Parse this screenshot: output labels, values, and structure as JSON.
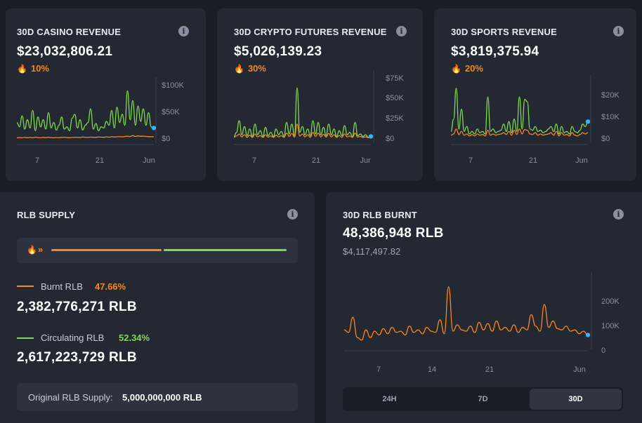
{
  "casino": {
    "title": "30D CASINO REVENUE",
    "value": "$23,032,806.21",
    "growth": "10%",
    "chart_data": {
      "type": "line",
      "yticks": [
        "$100K",
        "$50K",
        "$0"
      ],
      "xticks": [
        "7",
        "21",
        "Jun"
      ],
      "ymax": 100000,
      "series": [
        {
          "color": "#7fd94a",
          "values": [
            30000,
            22000,
            42000,
            18000,
            35000,
            20000,
            52000,
            15000,
            40000,
            22000,
            35000,
            18000,
            48000,
            20000,
            30000,
            16000,
            25000,
            40000,
            18000,
            22000,
            15000,
            38000,
            45000,
            20000,
            35000,
            16000,
            25000,
            30000,
            55000,
            18000,
            28000,
            15000,
            22000,
            20000,
            32000,
            25000,
            52000,
            20000,
            58000,
            30000,
            45000,
            25000,
            88000,
            35000,
            70000,
            25000,
            60000,
            32000,
            55000,
            25000,
            48000,
            22000,
            20000
          ]
        },
        {
          "color": "#f7881c",
          "values": [
            2000,
            2500,
            2000,
            3000,
            2200,
            2800,
            2000,
            3200,
            2500,
            2000,
            2800,
            2200,
            3000,
            2500,
            2000,
            2600,
            2200,
            2800,
            3000,
            2400,
            2200,
            2600,
            3000,
            2800,
            2500,
            3500,
            3000,
            2800,
            3200,
            3000,
            2800,
            3500,
            3200,
            3000,
            3800,
            3200,
            4000,
            3500,
            3800,
            4200,
            3800,
            4500,
            5000,
            4200,
            6000,
            4500,
            5500,
            4800,
            5000,
            4500,
            4200,
            4000,
            3800
          ]
        }
      ]
    }
  },
  "crypto": {
    "title": "30D CRYPTO FUTURES REVENUE",
    "value": "$5,026,139.23",
    "growth": "30%",
    "chart_data": {
      "type": "line",
      "yticks": [
        "$75K",
        "$50K",
        "$25K",
        "$0"
      ],
      "xticks": [
        "7",
        "21",
        "Jur"
      ],
      "ymax": 75000,
      "series": [
        {
          "color": "#7fd94a",
          "values": [
            3000,
            8000,
            22000,
            5000,
            15000,
            4000,
            12000,
            3000,
            18000,
            5000,
            10000,
            3000,
            14000,
            4000,
            8000,
            3000,
            12000,
            5000,
            9000,
            3000,
            20000,
            6000,
            18000,
            4000,
            62000,
            8000,
            15000,
            5000,
            12000,
            4000,
            22000,
            6000,
            20000,
            5000,
            14000,
            4000,
            18000,
            5000,
            12000,
            3000,
            10000,
            4000,
            16000,
            5000,
            8000,
            3000,
            20000,
            4000,
            6000,
            3000,
            5000,
            2000,
            3000
          ]
        },
        {
          "color": "#f7881c",
          "values": [
            2000,
            3500,
            6000,
            2500,
            5000,
            2000,
            4500,
            1800,
            6000,
            2500,
            4000,
            1800,
            5000,
            2200,
            3500,
            1800,
            4500,
            2500,
            3800,
            1800,
            7000,
            3000,
            6500,
            2200,
            18000,
            3500,
            6000,
            2500,
            5000,
            2000,
            8000,
            3000,
            7000,
            2500,
            5500,
            2200,
            6500,
            2500,
            5000,
            1800,
            4000,
            2000,
            6000,
            2500,
            3500,
            1800,
            7000,
            2200,
            3000,
            1800,
            2500,
            1500,
            2000
          ]
        }
      ]
    }
  },
  "sports": {
    "title": "30D SPORTS REVENUE",
    "value": "$3,819,375.94",
    "growth": "20%",
    "chart_data": {
      "type": "line",
      "yticks": [
        "$20K",
        "$10K",
        "$0"
      ],
      "xticks": [
        "7",
        "21",
        "Jun"
      ],
      "ymax": 23000,
      "series": [
        {
          "color": "#7fd94a",
          "values": [
            3000,
            8000,
            20500,
            4000,
            12000,
            3000,
            5000,
            2000,
            3000,
            2000,
            4000,
            2500,
            3000,
            2000,
            17000,
            3000,
            4000,
            2500,
            3000,
            3500,
            6000,
            3000,
            7000,
            2500,
            8000,
            3000,
            17000,
            4000,
            16000,
            15000,
            4000,
            3500,
            5000,
            3000,
            3500,
            2500,
            3000,
            4000,
            5000,
            3000,
            6000,
            2000,
            5000,
            2500,
            3000,
            2000,
            5000,
            3000,
            2500,
            3500,
            6000,
            5000,
            7000
          ]
        },
        {
          "color": "#f7881c",
          "values": [
            1500,
            2000,
            4000,
            1800,
            3000,
            1500,
            2000,
            1200,
            1800,
            1200,
            2000,
            1500,
            1800,
            1200,
            3500,
            1500,
            2000,
            1500,
            1800,
            2000,
            2500,
            1800,
            3000,
            1500,
            3500,
            1800,
            4000,
            2000,
            3800,
            3500,
            2000,
            1800,
            2500,
            1500,
            2000,
            1500,
            1800,
            2000,
            2500,
            1500,
            3000,
            1200,
            2500,
            1500,
            1800,
            1200,
            2500,
            1500,
            1200,
            1800,
            2500,
            2000,
            2500
          ]
        }
      ]
    }
  },
  "supply": {
    "title": "RLB SUPPLY",
    "burnt_label": "Burnt RLB",
    "burnt_pct": "47.66%",
    "burnt_fraction": 0.4766,
    "burnt_value": "2,382,776,271 RLB",
    "circ_label": "Circulating RLB",
    "circ_pct": "52.34%",
    "circ_value": "2,617,223,729 RLB",
    "original_label": "Original RLB Supply:",
    "original_value": "5,000,000,000 RLB",
    "colors": {
      "burnt": "#f7881c",
      "circulating": "#7fd94a"
    }
  },
  "burnt": {
    "title": "30D RLB BURNT",
    "value": "48,386,948 RLB",
    "usd": "$4,117,497.82",
    "tabs": [
      "24H",
      "7D",
      "30D"
    ],
    "active_tab": "30D",
    "chart_data": {
      "type": "line",
      "yticks": [
        "200K",
        "100K",
        "0"
      ],
      "xticks": [
        "7",
        "14",
        "21",
        "Jun"
      ],
      "ymax": 260000,
      "series": [
        {
          "color": "#f7881c",
          "values": [
            60000,
            50000,
            110000,
            30000,
            20000,
            60000,
            30000,
            55000,
            40000,
            65000,
            45000,
            70000,
            50000,
            55000,
            40000,
            75000,
            50000,
            60000,
            45000,
            70000,
            55000,
            50000,
            100000,
            45000,
            230000,
            55000,
            80000,
            60000,
            55000,
            75000,
            50000,
            90000,
            60000,
            85000,
            55000,
            95000,
            60000,
            70000,
            55000,
            80000,
            50000,
            70000,
            60000,
            120000,
            75000,
            55000,
            160000,
            70000,
            95000,
            65000,
            60000,
            75000,
            55000,
            60000,
            45000,
            55000,
            40000
          ]
        }
      ]
    }
  }
}
